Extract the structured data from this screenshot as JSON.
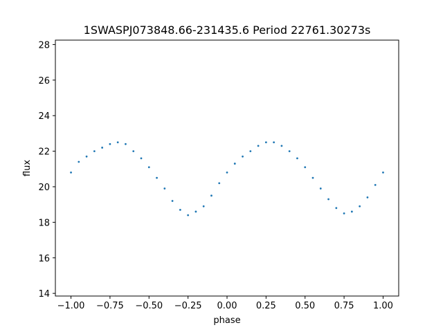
{
  "chart_data": {
    "type": "scatter",
    "title": "1SWASPJ073848.66-231435.6 Period 22761.30273s",
    "xlabel": "phase",
    "ylabel": "flux",
    "xlim": [
      -1.1,
      1.1
    ],
    "ylim": [
      13.85,
      28.25
    ],
    "x_ticks": [
      -1.0,
      -0.75,
      -0.5,
      -0.25,
      0.0,
      0.25,
      0.5,
      0.75,
      1.0
    ],
    "x_tick_labels": [
      "−1.00",
      "−0.75",
      "−0.50",
      "−0.25",
      "0.00",
      "0.25",
      "0.50",
      "0.75",
      "1.00"
    ],
    "y_ticks": [
      14,
      16,
      18,
      20,
      22,
      24,
      26,
      28
    ],
    "y_tick_labels": [
      "14",
      "16",
      "18",
      "20",
      "22",
      "24",
      "26",
      "28"
    ],
    "grid": false,
    "point_color": "#1f77b4",
    "series": [
      {
        "x": [
          -1.0,
          -0.95,
          -0.9,
          -0.85,
          -0.8,
          -0.75,
          -0.7,
          -0.65,
          -0.6,
          -0.55,
          -0.5,
          -0.45,
          -0.4,
          -0.35,
          -0.3,
          -0.25,
          -0.2,
          -0.15,
          -0.1,
          -0.05,
          0.0,
          0.05,
          0.1,
          0.15,
          0.2,
          0.25,
          0.3,
          0.35,
          0.4,
          0.45,
          0.5,
          0.55,
          0.6,
          0.65,
          0.7,
          0.75,
          0.8,
          0.85,
          0.9,
          0.95,
          1.0
        ],
        "y": [
          20.8,
          21.4,
          21.7,
          22.0,
          22.2,
          22.4,
          22.5,
          22.4,
          22.0,
          21.6,
          21.1,
          20.5,
          19.9,
          19.2,
          18.7,
          18.4,
          18.6,
          18.9,
          19.5,
          20.2,
          20.8,
          21.3,
          21.7,
          22.0,
          22.3,
          22.5,
          22.5,
          22.3,
          22.0,
          21.6,
          21.1,
          20.5,
          19.9,
          19.3,
          18.8,
          18.5,
          18.6,
          18.9,
          19.4,
          20.1,
          20.8
        ]
      }
    ]
  }
}
